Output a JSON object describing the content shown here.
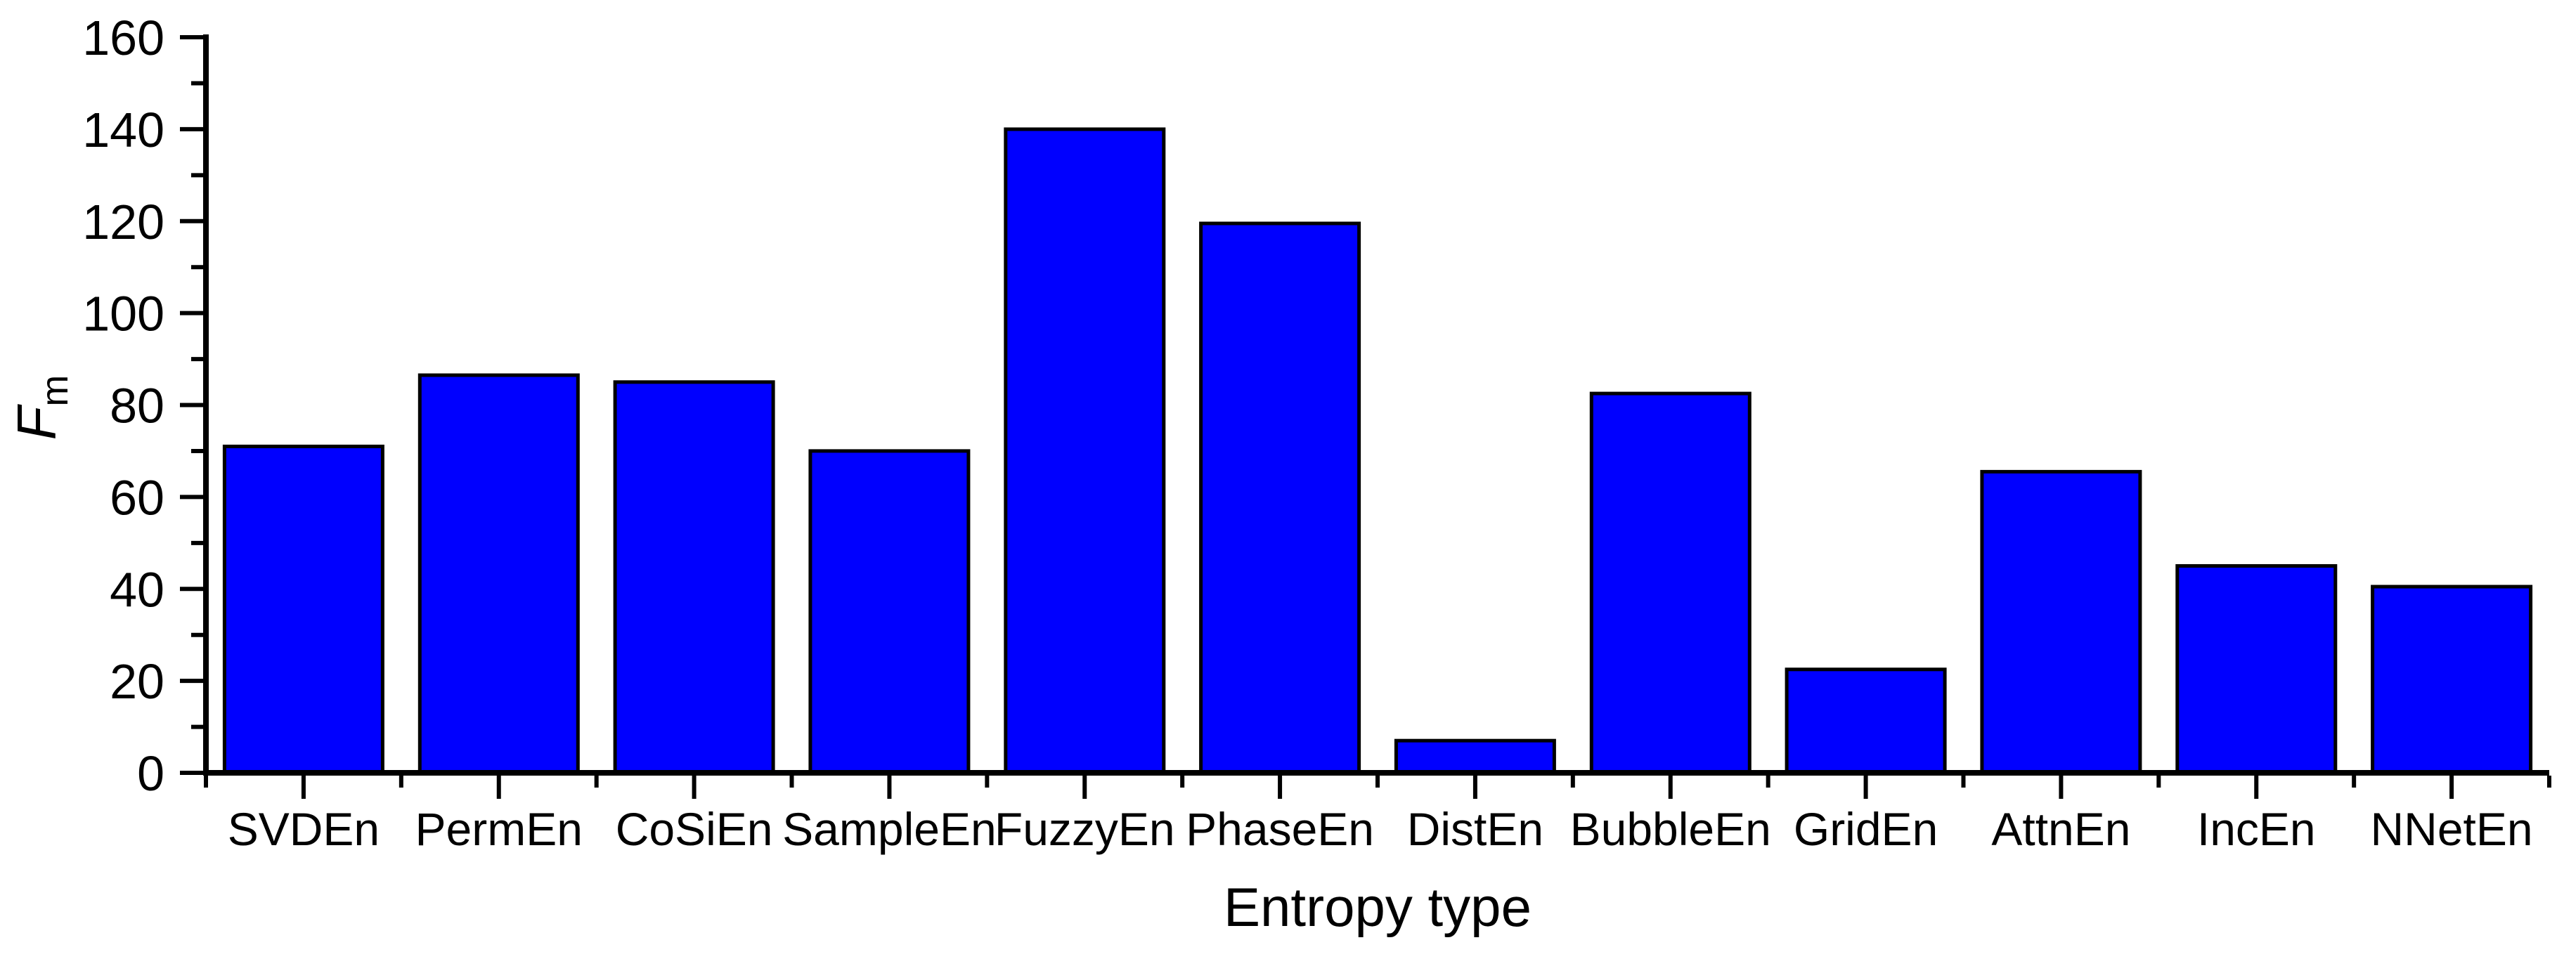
{
  "chart_data": {
    "type": "bar",
    "title": "",
    "xlabel": "Entropy type",
    "ylabel": "F",
    "ylabel_subscript": "m",
    "categories": [
      "SVDEn",
      "PermEn",
      "CoSiEn",
      "SampleEn",
      "FuzzyEn",
      "PhaseEn",
      "DistEn",
      "BubbleEn",
      "GridEn",
      "AttnEn",
      "IncEn",
      "NNetEn"
    ],
    "values": [
      71,
      86.5,
      85,
      70,
      140,
      119.5,
      7,
      82.5,
      22.5,
      65.5,
      45,
      40.5
    ],
    "ylim": [
      0,
      160
    ],
    "ytick_major_step": 20,
    "ytick_minor_step": 10,
    "grid": false,
    "legend_position": "none",
    "bar_color": "#0000ff",
    "bar_edge_color": "#000000",
    "axis_color": "#000000",
    "text_color": "#000000",
    "background_color": "#ffffff"
  }
}
